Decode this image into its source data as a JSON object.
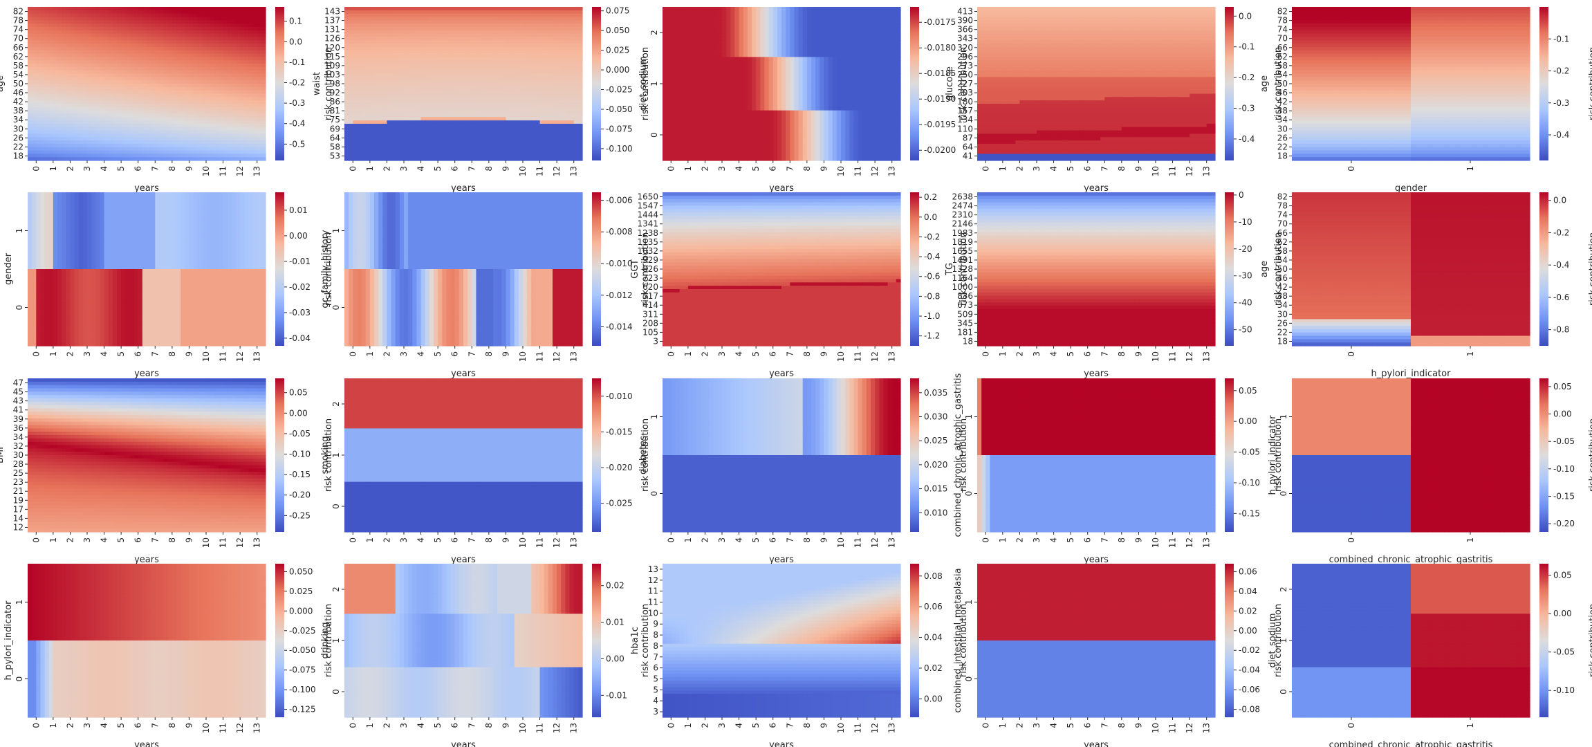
{
  "colormap": {
    "name": "coolwarm",
    "stops": [
      "#3b4cc0",
      "#6f92f3",
      "#aac7fd",
      "#dddcdc",
      "#f7b89c",
      "#e7745b",
      "#b40426"
    ]
  },
  "chart_data": [
    {
      "type": "heatmap",
      "xlabel": "years",
      "ylabel": "age",
      "x_ticks": [
        "0",
        "1",
        "2",
        "3",
        "4",
        "5",
        "6",
        "7",
        "8",
        "9",
        "10",
        "11",
        "12",
        "13"
      ],
      "y_ticks": [
        "82",
        "78",
        "74",
        "70",
        "66",
        "62",
        "58",
        "54",
        "50",
        "46",
        "42",
        "38",
        "34",
        "30",
        "26",
        "22",
        "18"
      ],
      "colorbar": {
        "label": "risk contribution",
        "ticks": [
          "0.1",
          "0.0",
          "-0.1",
          "-0.2",
          "-0.3",
          "-0.4",
          "-0.5"
        ],
        "range": [
          -0.58,
          0.17
        ]
      },
      "pattern": {
        "kind": "ramp_xy",
        "low": -0.55,
        "high": 0.17
      }
    },
    {
      "type": "heatmap",
      "xlabel": "years",
      "ylabel": "waist",
      "x_ticks": [
        "0",
        "1",
        "2",
        "3",
        "4",
        "5",
        "6",
        "7",
        "8",
        "9",
        "10",
        "11",
        "12",
        "13"
      ],
      "y_ticks": [
        "143",
        "137",
        "131",
        "126",
        "120",
        "115",
        "109",
        "103",
        "98",
        "92",
        "86",
        "81",
        "75",
        "69",
        "64",
        "58",
        "53"
      ],
      "colorbar": {
        "label": "risk contribution",
        "ticks": [
          "0.075",
          "0.050",
          "0.025",
          "0.000",
          "-0.025",
          "-0.050",
          "-0.075",
          "-0.100"
        ],
        "range": [
          -0.115,
          0.08
        ]
      },
      "pattern": {
        "kind": "threshold_rows",
        "threshold_value": 83,
        "below": -0.11,
        "above_low": -0.01,
        "above_high": 0.078
      }
    },
    {
      "type": "heatmap",
      "xlabel": "years",
      "ylabel": "diet_sodium",
      "x_ticks": [
        "0",
        "1",
        "2",
        "3",
        "4",
        "5",
        "6",
        "7",
        "8",
        "9",
        "10",
        "11",
        "12",
        "13"
      ],
      "y_ticks": [
        "2",
        "1",
        "0"
      ],
      "colorbar": {
        "label": "risk contribution",
        "ticks": [
          "-0.0175",
          "-0.0180",
          "-0.0185",
          "-0.0190",
          "-0.0195",
          "-0.0200"
        ],
        "range": [
          -0.0202,
          -0.0172
        ]
      },
      "pattern": {
        "kind": "band_transition",
        "transition_at_year": [
          3.5,
          5.0,
          6.5
        ],
        "high": -0.0173,
        "low": -0.0201
      }
    },
    {
      "type": "heatmap",
      "xlabel": "years",
      "ylabel": "glucose",
      "x_ticks": [
        "0",
        "1",
        "2",
        "3",
        "4",
        "5",
        "6",
        "7",
        "8",
        "9",
        "10",
        "11",
        "12",
        "13"
      ],
      "y_ticks": [
        "413",
        "390",
        "366",
        "343",
        "320",
        "296",
        "273",
        "250",
        "227",
        "203",
        "180",
        "157",
        "134",
        "110",
        "87",
        "64",
        "41"
      ],
      "colorbar": {
        "label": "risk contribution",
        "ticks": [
          "0.0",
          "-0.1",
          "-0.2",
          "-0.3",
          "-0.4"
        ],
        "range": [
          -0.47,
          0.03
        ]
      },
      "pattern": {
        "kind": "glucose",
        "low": -0.46,
        "high": 0.02
      }
    },
    {
      "type": "heatmap",
      "xlabel": "gender",
      "ylabel": "age",
      "x_ticks": [
        "0",
        "1"
      ],
      "y_ticks": [
        "82",
        "78",
        "74",
        "70",
        "66",
        "62",
        "58",
        "54",
        "50",
        "46",
        "42",
        "38",
        "34",
        "30",
        "26",
        "22",
        "18"
      ],
      "colorbar": {
        "label": "risk contribution",
        "ticks": [
          "-0.1",
          "-0.2",
          "-0.3",
          "-0.4"
        ],
        "range": [
          -0.48,
          0.0
        ]
      },
      "pattern": {
        "kind": "age_by_category",
        "low": -0.47,
        "high": 0.0
      }
    },
    {
      "type": "heatmap",
      "xlabel": "years",
      "ylabel": "gender",
      "x_ticks": [
        "0",
        "1",
        "2",
        "3",
        "4",
        "5",
        "6",
        "7",
        "8",
        "9",
        "10",
        "11",
        "12",
        "13"
      ],
      "y_ticks": [
        "1",
        "0"
      ],
      "colorbar": {
        "label": "risk contribution",
        "ticks": [
          "0.01",
          "0.00",
          "-0.01",
          "-0.02",
          "-0.03",
          "-0.04"
        ],
        "range": [
          -0.043,
          0.017
        ]
      },
      "pattern": {
        "kind": "two_rows_temporal",
        "low": -0.043,
        "high": 0.017
      }
    },
    {
      "type": "heatmap",
      "xlabel": "years",
      "ylabel": "gc_family_history",
      "x_ticks": [
        "0",
        "1",
        "2",
        "3",
        "4",
        "5",
        "6",
        "7",
        "8",
        "9",
        "10",
        "11",
        "12",
        "13"
      ],
      "y_ticks": [
        "1",
        "0"
      ],
      "colorbar": {
        "label": "risk contribution",
        "ticks": [
          "-0.006",
          "-0.008",
          "-0.010",
          "-0.012",
          "-0.014"
        ],
        "range": [
          -0.0152,
          -0.0055
        ]
      },
      "pattern": {
        "kind": "two_rows_stripes",
        "low": -0.0152,
        "high": -0.0055
      }
    },
    {
      "type": "heatmap",
      "xlabel": "years",
      "ylabel": "GGT",
      "x_ticks": [
        "0",
        "1",
        "2",
        "3",
        "4",
        "5",
        "6",
        "7",
        "8",
        "9",
        "10",
        "11",
        "12",
        "13"
      ],
      "y_ticks": [
        "1650",
        "1547",
        "1444",
        "1341",
        "1238",
        "1135",
        "1032",
        "929",
        "826",
        "723",
        "620",
        "517",
        "414",
        "311",
        "208",
        "105",
        "3"
      ],
      "colorbar": {
        "label": "risk contribution",
        "ticks": [
          "0.2",
          "0.0",
          "-0.2",
          "-0.4",
          "-0.6",
          "-0.8",
          "-1.0",
          "-1.2"
        ],
        "range": [
          -1.3,
          0.25
        ]
      },
      "pattern": {
        "kind": "ggt",
        "low": -1.28,
        "high": 0.22
      }
    },
    {
      "type": "heatmap",
      "xlabel": "years",
      "ylabel": "TG",
      "x_ticks": [
        "0",
        "1",
        "2",
        "3",
        "4",
        "5",
        "6",
        "7",
        "8",
        "9",
        "10",
        "11",
        "12",
        "13"
      ],
      "y_ticks": [
        "2638",
        "2474",
        "2310",
        "2146",
        "1983",
        "1819",
        "1655",
        "1491",
        "1328",
        "1164",
        "1000",
        "836",
        "673",
        "509",
        "345",
        "181",
        "18"
      ],
      "colorbar": {
        "label": "risk contribution",
        "ticks": [
          "0",
          "-10",
          "-20",
          "-30",
          "-40",
          "-50"
        ],
        "range": [
          -56,
          1
        ]
      },
      "pattern": {
        "kind": "tg",
        "low": -55,
        "high": 0.5
      }
    },
    {
      "type": "heatmap",
      "xlabel": "h_pylori_indicator",
      "ylabel": "age",
      "x_ticks": [
        "0",
        "1"
      ],
      "y_ticks": [
        "82",
        "78",
        "74",
        "70",
        "66",
        "62",
        "58",
        "54",
        "50",
        "46",
        "42",
        "38",
        "34",
        "30",
        "26",
        "22",
        "18"
      ],
      "colorbar": {
        "label": "risk contribution",
        "ticks": [
          "0.0",
          "-0.2",
          "-0.4",
          "-0.6",
          "-0.8"
        ],
        "range": [
          -0.9,
          0.05
        ]
      },
      "pattern": {
        "kind": "age_hpylori",
        "low": -0.88,
        "high": 0.04
      }
    },
    {
      "type": "heatmap",
      "xlabel": "years",
      "ylabel": "BMI",
      "x_ticks": [
        "0",
        "1",
        "2",
        "3",
        "4",
        "5",
        "6",
        "7",
        "8",
        "9",
        "10",
        "11",
        "12",
        "13"
      ],
      "y_ticks": [
        "47",
        "45",
        "43",
        "41",
        "39",
        "36",
        "34",
        "32",
        "30",
        "28",
        "25",
        "23",
        "21",
        "19",
        "17",
        "14",
        "12"
      ],
      "colorbar": {
        "label": "risk contribution",
        "ticks": [
          "0.05",
          "0.00",
          "-0.05",
          "-0.10",
          "-0.15",
          "-0.20",
          "-0.25"
        ],
        "range": [
          -0.29,
          0.085
        ]
      },
      "pattern": {
        "kind": "bmi",
        "low": -0.29,
        "high": 0.085
      }
    },
    {
      "type": "heatmap",
      "xlabel": "years",
      "ylabel": "smoking",
      "x_ticks": [
        "0",
        "1",
        "2",
        "3",
        "4",
        "5",
        "6",
        "7",
        "8",
        "9",
        "10",
        "11",
        "12",
        "13"
      ],
      "y_ticks": [
        "2",
        "1",
        "0"
      ],
      "colorbar": {
        "label": "risk contribution",
        "ticks": [
          "-0.010",
          "-0.015",
          "-0.020",
          "-0.025"
        ],
        "range": [
          -0.029,
          -0.0075
        ]
      },
      "pattern": {
        "kind": "rows_const",
        "row_values": [
          -0.0095,
          -0.0235,
          -0.0285
        ]
      }
    },
    {
      "type": "heatmap",
      "xlabel": "years",
      "ylabel": "diabetes",
      "x_ticks": [
        "0",
        "1",
        "2",
        "3",
        "4",
        "5",
        "6",
        "7",
        "8",
        "9",
        "10",
        "11",
        "12",
        "13"
      ],
      "y_ticks": [
        "1",
        "0"
      ],
      "colorbar": {
        "label": "risk contribution",
        "ticks": [
          "0.035",
          "0.030",
          "0.025",
          "0.020",
          "0.015",
          "0.010"
        ],
        "range": [
          0.006,
          0.038
        ]
      },
      "pattern": {
        "kind": "diabetes",
        "low": 0.006,
        "high": 0.038
      }
    },
    {
      "type": "heatmap",
      "xlabel": "years",
      "ylabel": "combined_chronic_atrophic_gastritis",
      "x_ticks": [
        "0",
        "1",
        "2",
        "3",
        "4",
        "5",
        "6",
        "7",
        "8",
        "9",
        "10",
        "11",
        "12",
        "13"
      ],
      "y_ticks": [
        "1",
        "0"
      ],
      "colorbar": {
        "label": "risk contribution",
        "ticks": [
          "0.05",
          "0.00",
          "-0.05",
          "-0.10",
          "-0.15"
        ],
        "range": [
          -0.18,
          0.07
        ]
      },
      "pattern": {
        "kind": "cag",
        "low": -0.18,
        "high": 0.07
      }
    },
    {
      "type": "heatmap",
      "xlabel": "combined_chronic_atrophic_gastritis",
      "ylabel": "h_pylori_indicator",
      "x_ticks": [
        "0",
        "1"
      ],
      "y_ticks": [
        "1",
        "0"
      ],
      "colorbar": {
        "label": "risk contribution",
        "ticks": [
          "0.05",
          "0.00",
          "-0.05",
          "-0.10",
          "-0.15",
          "-0.20"
        ],
        "range": [
          -0.215,
          0.065
        ]
      },
      "pattern": {
        "kind": "grid",
        "cells": [
          [
            0.005,
            0.065
          ],
          [
            -0.205,
            0.065
          ]
        ]
      }
    },
    {
      "type": "heatmap",
      "xlabel": "years",
      "ylabel": "h_pylori_indicator",
      "x_ticks": [
        "0",
        "1",
        "2",
        "3",
        "4",
        "5",
        "6",
        "7",
        "8",
        "9",
        "10",
        "11",
        "12",
        "13"
      ],
      "y_ticks": [
        "1",
        "0"
      ],
      "colorbar": {
        "label": "risk contribution",
        "ticks": [
          "0.050",
          "0.025",
          "0.000",
          "-0.025",
          "-0.050",
          "-0.075",
          "-0.100",
          "-0.125"
        ],
        "range": [
          -0.135,
          0.06
        ]
      },
      "pattern": {
        "kind": "hp_years",
        "low": -0.135,
        "high": 0.06
      }
    },
    {
      "type": "heatmap",
      "xlabel": "years",
      "ylabel": "drinking",
      "x_ticks": [
        "0",
        "1",
        "2",
        "3",
        "4",
        "5",
        "6",
        "7",
        "8",
        "9",
        "10",
        "11",
        "12",
        "13"
      ],
      "y_ticks": [
        "2",
        "1",
        "0"
      ],
      "colorbar": {
        "label": "risk contribution",
        "ticks": [
          "0.02",
          "0.01",
          "0.00",
          "-0.01"
        ],
        "range": [
          -0.016,
          0.026
        ]
      },
      "pattern": {
        "kind": "drinking",
        "low": -0.016,
        "high": 0.026
      }
    },
    {
      "type": "heatmap",
      "xlabel": "years",
      "ylabel": "hba1c",
      "x_ticks": [
        "0",
        "1",
        "2",
        "3",
        "4",
        "5",
        "6",
        "7",
        "8",
        "9",
        "10",
        "11",
        "12",
        "13"
      ],
      "y_ticks": [
        "13",
        "12",
        "11",
        "11",
        "10",
        "9",
        "8",
        "8",
        "7",
        "6",
        "5",
        "5",
        "4",
        "3"
      ],
      "colorbar": {
        "label": "risk contribution",
        "ticks": [
          "0.08",
          "0.06",
          "0.04",
          "0.02",
          "0.00"
        ],
        "range": [
          -0.012,
          0.088
        ]
      },
      "pattern": {
        "kind": "hba1c",
        "low": -0.012,
        "high": 0.088
      }
    },
    {
      "type": "heatmap",
      "xlabel": "years",
      "ylabel": "combined_intestinal_metaplasia",
      "x_ticks": [
        "0",
        "1",
        "2",
        "3",
        "4",
        "5",
        "6",
        "7",
        "8",
        "9",
        "10",
        "11",
        "12",
        "13"
      ],
      "y_ticks": [
        "1",
        "0"
      ],
      "colorbar": {
        "label": "risk contribution",
        "ticks": [
          "0.06",
          "0.04",
          "0.02",
          "0.00",
          "-0.02",
          "-0.04",
          "-0.06",
          "-0.08"
        ],
        "range": [
          -0.088,
          0.068
        ]
      },
      "pattern": {
        "kind": "rows_const",
        "row_values": [
          0.062,
          -0.068
        ]
      }
    },
    {
      "type": "heatmap",
      "xlabel": "combined_chronic_atrophic_gastritis",
      "ylabel": "diet_sodium",
      "x_ticks": [
        "0",
        "1"
      ],
      "y_ticks": [
        "2",
        "1",
        "0"
      ],
      "colorbar": {
        "label": "risk contribution",
        "ticks": [
          "0.05",
          "0.00",
          "-0.05",
          "-0.10"
        ],
        "range": [
          -0.135,
          0.065
        ]
      },
      "pattern": {
        "kind": "grid",
        "cells": [
          [
            -0.125,
            0.04
          ],
          [
            -0.125,
            0.06
          ],
          [
            -0.1,
            0.064
          ]
        ]
      }
    }
  ]
}
